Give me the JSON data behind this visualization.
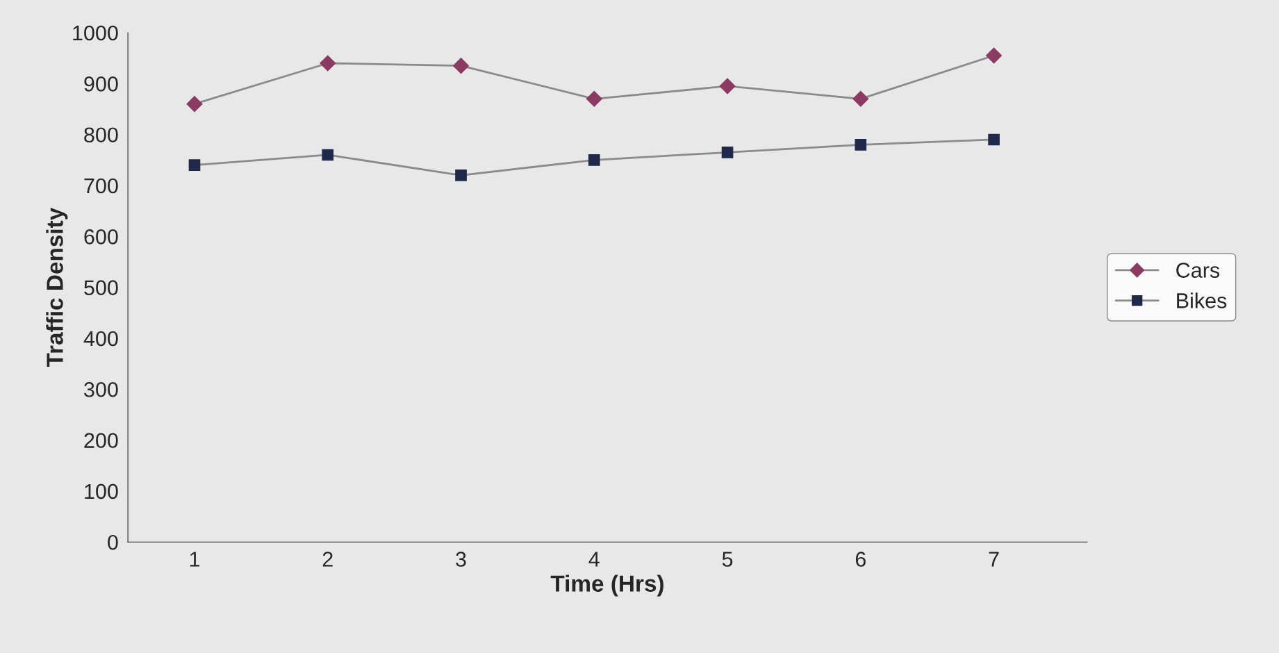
{
  "chart_data": {
    "type": "line",
    "xlabel": "Time (Hrs)",
    "ylabel": "Traffic Density",
    "categories": [
      "1",
      "2",
      "3",
      "4",
      "5",
      "6",
      "7"
    ],
    "series": [
      {
        "name": "Cars",
        "color": "#8b3a62",
        "marker": "diamond",
        "values": [
          860,
          940,
          935,
          870,
          895,
          870,
          955
        ]
      },
      {
        "name": "Bikes",
        "color": "#1f2a4a",
        "marker": "square",
        "values": [
          740,
          760,
          720,
          750,
          765,
          780,
          790
        ]
      }
    ],
    "ylim": [
      0,
      1000
    ],
    "yticks": [
      0,
      100,
      200,
      300,
      400,
      500,
      600,
      700,
      800,
      900,
      1000
    ],
    "grid": false,
    "legend": "right"
  }
}
